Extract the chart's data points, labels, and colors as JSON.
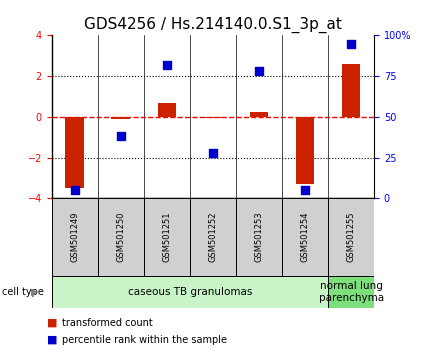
{
  "title": "GDS4256 / Hs.214140.0.S1_3p_at",
  "samples": [
    "GSM501249",
    "GSM501250",
    "GSM501251",
    "GSM501252",
    "GSM501253",
    "GSM501254",
    "GSM501255"
  ],
  "transformed_count": [
    -3.5,
    -0.1,
    0.7,
    -0.05,
    0.25,
    -3.3,
    2.6
  ],
  "percentile_rank": [
    5,
    38,
    82,
    28,
    78,
    5,
    95
  ],
  "bar_color": "#cc2200",
  "dot_color": "#0000cc",
  "ylim_left": [
    -4,
    4
  ],
  "ylim_right": [
    0,
    100
  ],
  "yticks_left": [
    -4,
    -2,
    0,
    2,
    4
  ],
  "yticks_right": [
    0,
    25,
    50,
    75,
    100
  ],
  "ytick_labels_right": [
    "0",
    "25",
    "50",
    "75",
    "100%"
  ],
  "hlines": [
    2,
    0,
    -2
  ],
  "hline_styles": [
    "dotted",
    "dashed",
    "dotted"
  ],
  "hline_colors": [
    "black",
    "red",
    "black"
  ],
  "cell_groups": [
    {
      "label": "caseous TB granulomas",
      "start": 0,
      "end": 5,
      "color": "#c8f4c8"
    },
    {
      "label": "normal lung\nparenchyma",
      "start": 6,
      "end": 6,
      "color": "#7de07d"
    }
  ],
  "cell_type_label": "cell type",
  "legend_items": [
    {
      "color": "#cc2200",
      "label": "transformed count"
    },
    {
      "color": "#0000cc",
      "label": "percentile rank within the sample"
    }
  ],
  "bar_width": 0.4,
  "dot_size": 35,
  "title_fontsize": 11,
  "tick_fontsize": 7,
  "sample_fontsize": 6,
  "legend_fontsize": 7,
  "cell_type_fontsize": 7,
  "group_label_fontsize": 7.5
}
